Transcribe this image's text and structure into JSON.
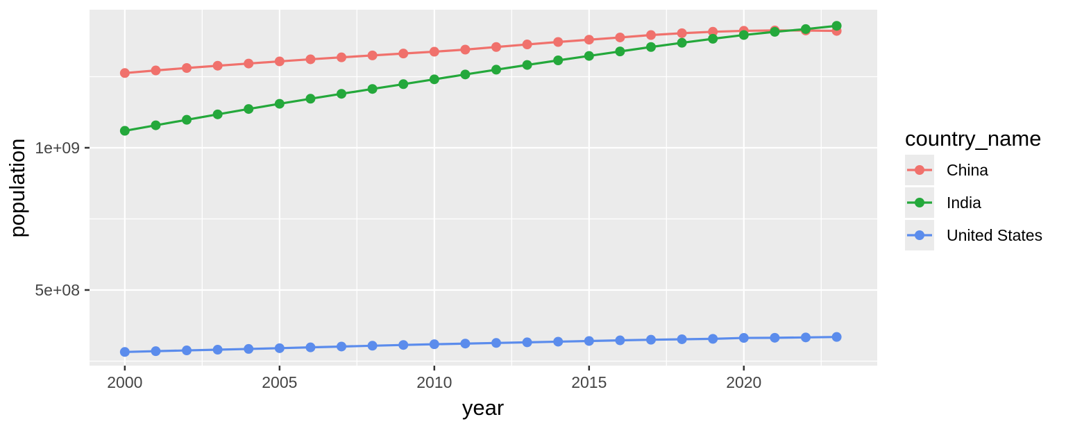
{
  "style": {
    "figure_background": "#FFFFFF",
    "tick_color": "#333333",
    "tick_label_color": "#444444",
    "title_color": "#000000"
  },
  "legend": {
    "title": "country_name"
  },
  "chart_data": {
    "type": "line",
    "title": "",
    "xlabel": "year",
    "ylabel": "population",
    "legend_title": "country_name",
    "legend_position": "right",
    "grid": true,
    "panel_background": "#EBEBEB",
    "grid_color": "#FFFFFF",
    "x": [
      2000,
      2001,
      2002,
      2003,
      2004,
      2005,
      2006,
      2007,
      2008,
      2009,
      2010,
      2011,
      2012,
      2013,
      2014,
      2015,
      2016,
      2017,
      2018,
      2019,
      2020,
      2021,
      2022,
      2023
    ],
    "series": [
      {
        "name": "China",
        "color": "#F0716C",
        "values": [
          1262645000,
          1271850000,
          1280400000,
          1288400000,
          1296075000,
          1303720000,
          1311020000,
          1317885000,
          1324655000,
          1331260000,
          1337705000,
          1345035000,
          1354190000,
          1363240000,
          1371860000,
          1379860000,
          1387790000,
          1396215000,
          1402760000,
          1407745000,
          1411100000,
          1412360000,
          1412175000,
          1410710000
        ]
      },
      {
        "name": "India",
        "color": "#24A83B",
        "values": [
          1059633675,
          1078970907,
          1098313039,
          1117415123,
          1136264583,
          1154638713,
          1172373788,
          1189691809,
          1206734806,
          1223640160,
          1240613620,
          1257621191,
          1274487215,
          1291132063,
          1307246509,
          1322866505,
          1338636340,
          1354195680,
          1369003306,
          1383112050,
          1396387127,
          1407563842,
          1417173173,
          1428627663
        ]
      },
      {
        "name": "United States",
        "color": "#5B8CEC",
        "values": [
          282162411,
          284968955,
          287625193,
          290107933,
          292805298,
          295516599,
          298379912,
          301231207,
          304093966,
          306771529,
          309327143,
          311583481,
          313877662,
          316059947,
          318386329,
          320738994,
          323071755,
          325122128,
          326838199,
          328329953,
          331511512,
          332031554,
          333287557,
          334914895
        ]
      }
    ],
    "x_ticks": [
      2000,
      2005,
      2010,
      2015,
      2020
    ],
    "x_tick_labels": [
      "2000",
      "2005",
      "2010",
      "2015",
      "2020"
    ],
    "x_minor_ticks": [
      2002.5,
      2007.5,
      2012.5,
      2017.5,
      2022.5
    ],
    "y_ticks": [
      500000000,
      1000000000
    ],
    "y_tick_labels": [
      "5e+08",
      "1e+09"
    ],
    "y_minor_ticks": [
      250000000,
      750000000,
      1250000000
    ],
    "xlim": [
      1998.86,
      2024.31
    ],
    "ylim": [
      234100000,
      1485300000
    ]
  }
}
